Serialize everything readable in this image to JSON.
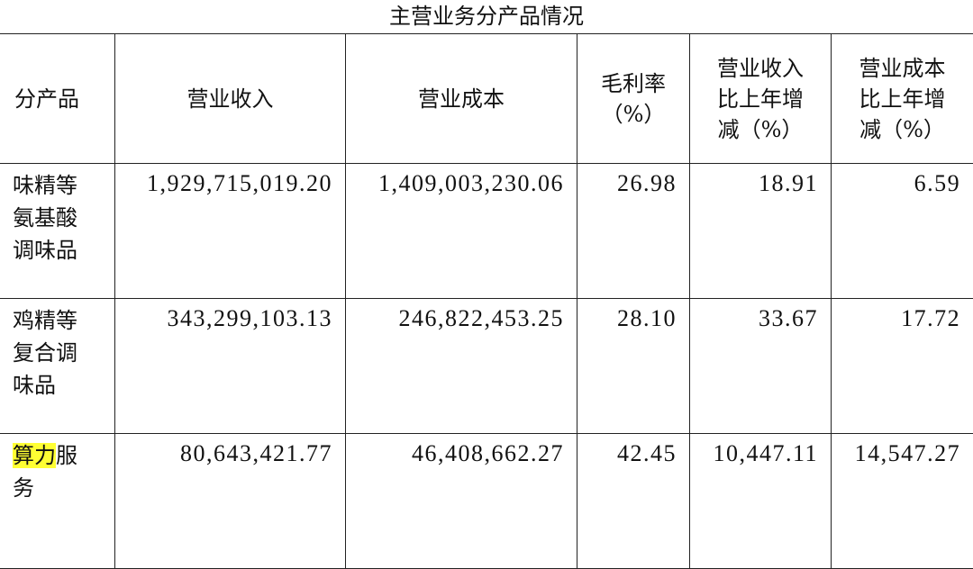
{
  "title": "主营业务分产品情况",
  "headers": [
    "分产品",
    "营业收入",
    "营业成本",
    "毛利率\n（%）",
    "营业收入\n比上年增\n减（%）",
    "营业成本\n比上年增\n减（%）"
  ],
  "rows": [
    {
      "name": "味精等\n氨基酸\n调味品",
      "name_highlight": "",
      "revenue": "1,929,715,019.20",
      "cost": "1,409,003,230.06",
      "gross_margin": "26.98",
      "revenue_change": "18.91",
      "cost_change": "6.59"
    },
    {
      "name": "鸡精等\n复合调\n味品",
      "name_highlight": "",
      "revenue": "343,299,103.13",
      "cost": "246,822,453.25",
      "gross_margin": "28.10",
      "revenue_change": "33.67",
      "cost_change": "17.72"
    },
    {
      "name": "服\n务",
      "name_highlight": "算力",
      "revenue": "80,643,421.77",
      "cost": "46,408,662.27",
      "gross_margin": "42.45",
      "revenue_change": "10,447.11",
      "cost_change": "14,547.27"
    }
  ],
  "highlight_color": "#ffff33"
}
